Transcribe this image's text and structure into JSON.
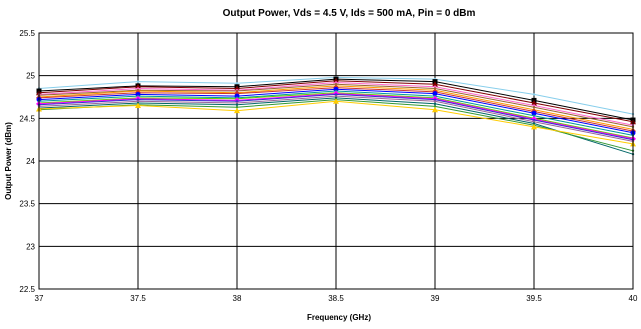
{
  "chart_data": {
    "type": "line",
    "title": "Output Power, Vds = 4.5 V, Ids = 500 mA, Pin = 0 dBm",
    "xlabel": "Frequency (GHz)",
    "ylabel": "Output Power (dBm)",
    "xlim": [
      37,
      40
    ],
    "ylim": [
      22.5,
      25.5
    ],
    "grid": true,
    "legend": "none",
    "x": [
      37,
      37.5,
      38,
      38.5,
      39,
      39.5,
      40
    ],
    "xticks": [
      "37",
      "37.5",
      "38",
      "38.5",
      "39",
      "39.5",
      "40"
    ],
    "yticks": [
      "22.5",
      "23",
      "23.5",
      "24",
      "24.5",
      "25",
      "25.5"
    ],
    "series": [
      {
        "color": "#87ceeb",
        "marker": "none",
        "values": [
          24.85,
          24.93,
          24.91,
          24.98,
          24.96,
          24.78,
          24.55
        ]
      },
      {
        "color": "#000000",
        "marker": "square",
        "values": [
          24.82,
          24.88,
          24.87,
          24.96,
          24.93,
          24.71,
          24.48
        ]
      },
      {
        "color": "#7f0000",
        "marker": "triangle",
        "values": [
          24.8,
          24.87,
          24.85,
          24.94,
          24.9,
          24.68,
          24.46
        ]
      },
      {
        "color": "#ff66cc",
        "marker": "none",
        "values": [
          24.78,
          24.85,
          24.83,
          24.92,
          24.87,
          24.65,
          24.42
        ]
      },
      {
        "color": "#996633",
        "marker": "none",
        "values": [
          24.77,
          24.83,
          24.82,
          24.9,
          24.85,
          24.63,
          24.4
        ]
      },
      {
        "color": "#ff9900",
        "marker": "none",
        "values": [
          24.75,
          24.82,
          24.8,
          24.88,
          24.83,
          24.6,
          24.37
        ]
      },
      {
        "color": "#cc3333",
        "marker": "diamond",
        "values": [
          24.74,
          24.8,
          24.79,
          24.86,
          24.81,
          24.58,
          24.35
        ]
      },
      {
        "color": "#0000ff",
        "marker": "circle",
        "values": [
          24.72,
          24.78,
          24.76,
          24.84,
          24.79,
          24.56,
          24.33
        ]
      },
      {
        "color": "#009999",
        "marker": "none",
        "values": [
          24.7,
          24.76,
          24.74,
          24.82,
          24.76,
          24.53,
          24.3
        ]
      },
      {
        "color": "#66cc00",
        "marker": "none",
        "values": [
          24.68,
          24.74,
          24.73,
          24.8,
          24.74,
          24.5,
          24.27
        ]
      },
      {
        "color": "#ff00ff",
        "marker": "diamond",
        "values": [
          24.67,
          24.73,
          24.71,
          24.79,
          24.73,
          24.49,
          24.26
        ]
      },
      {
        "color": "#3333cc",
        "marker": "none",
        "values": [
          24.66,
          24.72,
          24.7,
          24.78,
          24.72,
          24.48,
          24.25
        ]
      },
      {
        "color": "#996699",
        "marker": "none",
        "values": [
          24.64,
          24.7,
          24.68,
          24.76,
          24.7,
          24.46,
          24.23
        ]
      },
      {
        "color": "#006666",
        "marker": "none",
        "values": [
          24.62,
          24.68,
          24.66,
          24.74,
          24.67,
          24.44,
          24.08
        ]
      },
      {
        "color": "#339933",
        "marker": "none",
        "values": [
          24.6,
          24.66,
          24.63,
          24.72,
          24.64,
          24.42,
          24.12
        ]
      },
      {
        "color": "#ffcc00",
        "marker": "triangle",
        "values": [
          24.61,
          24.65,
          24.59,
          24.7,
          24.6,
          24.4,
          24.2
        ]
      }
    ]
  }
}
